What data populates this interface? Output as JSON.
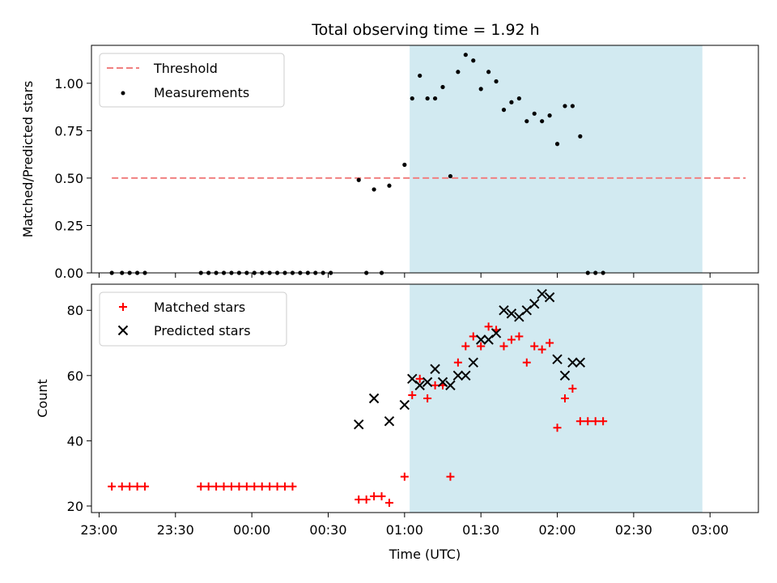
{
  "chart_data": [
    {
      "type": "scatter",
      "title": "Total observing time = 1.92 h",
      "xlabel": "",
      "ylabel": "Matched/Predicted stars",
      "ylim": [
        0,
        1.2
      ],
      "yticks": [
        0.0,
        0.25,
        0.5,
        0.75,
        1.0
      ],
      "ytick_labels": [
        "0.00",
        "0.25",
        "0.50",
        "0.75",
        "1.00"
      ],
      "shaded_region": {
        "start": "01:02",
        "end": "02:57",
        "color": "#add8e6"
      },
      "legend_position": "upper-left",
      "threshold": {
        "name": "Threshold",
        "value": 0.5,
        "x_range": [
          "23:05",
          "03:14"
        ],
        "color": "#f08080"
      },
      "series": [
        {
          "name": "Measurements",
          "marker": "dot",
          "color": "#000000",
          "points": [
            [
              "23:05",
              0.0
            ],
            [
              "23:09",
              0.0
            ],
            [
              "23:12",
              0.0
            ],
            [
              "23:15",
              0.0
            ],
            [
              "23:18",
              0.0
            ],
            [
              "23:40",
              0.0
            ],
            [
              "23:43",
              0.0
            ],
            [
              "23:46",
              0.0
            ],
            [
              "23:49",
              0.0
            ],
            [
              "23:52",
              0.0
            ],
            [
              "23:55",
              0.0
            ],
            [
              "23:58",
              0.0
            ],
            [
              "00:01",
              0.0
            ],
            [
              "00:04",
              0.0
            ],
            [
              "00:07",
              0.0
            ],
            [
              "00:10",
              0.0
            ],
            [
              "00:13",
              0.0
            ],
            [
              "00:16",
              0.0
            ],
            [
              "00:19",
              0.0
            ],
            [
              "00:22",
              0.0
            ],
            [
              "00:25",
              0.0
            ],
            [
              "00:28",
              0.0
            ],
            [
              "00:31",
              0.0
            ],
            [
              "00:42",
              0.49
            ],
            [
              "00:45",
              0.0
            ],
            [
              "00:48",
              0.44
            ],
            [
              "00:51",
              0.0
            ],
            [
              "00:54",
              0.46
            ],
            [
              "01:00",
              0.57
            ],
            [
              "01:03",
              0.92
            ],
            [
              "01:06",
              1.04
            ],
            [
              "01:09",
              0.92
            ],
            [
              "01:12",
              0.92
            ],
            [
              "01:15",
              0.98
            ],
            [
              "01:18",
              0.51
            ],
            [
              "01:21",
              1.06
            ],
            [
              "01:24",
              1.15
            ],
            [
              "01:27",
              1.12
            ],
            [
              "01:30",
              0.97
            ],
            [
              "01:33",
              1.06
            ],
            [
              "01:36",
              1.01
            ],
            [
              "01:39",
              0.86
            ],
            [
              "01:42",
              0.9
            ],
            [
              "01:45",
              0.92
            ],
            [
              "01:48",
              0.8
            ],
            [
              "01:51",
              0.84
            ],
            [
              "01:54",
              0.8
            ],
            [
              "01:57",
              0.83
            ],
            [
              "02:00",
              0.68
            ],
            [
              "02:03",
              0.88
            ],
            [
              "02:06",
              0.88
            ],
            [
              "02:09",
              0.72
            ],
            [
              "02:12",
              0.0
            ],
            [
              "02:15",
              0.0
            ],
            [
              "02:18",
              0.0
            ]
          ]
        }
      ]
    },
    {
      "type": "scatter",
      "title": "",
      "xlabel": "Time (UTC)",
      "ylabel": "Count",
      "ylim": [
        18,
        88
      ],
      "yticks": [
        20,
        40,
        60,
        80
      ],
      "ytick_labels": [
        "20",
        "40",
        "60",
        "80"
      ],
      "xlim": [
        "22:57",
        "03:19"
      ],
      "xticks": [
        "23:00",
        "23:30",
        "00:00",
        "00:30",
        "01:00",
        "01:30",
        "02:00",
        "02:30",
        "03:00"
      ],
      "shaded_region": {
        "start": "01:02",
        "end": "02:57",
        "color": "#add8e6"
      },
      "legend_position": "upper-left",
      "series": [
        {
          "name": "Matched stars",
          "marker": "plus",
          "color": "#ff0000",
          "points": [
            [
              "23:05",
              26
            ],
            [
              "23:09",
              26
            ],
            [
              "23:12",
              26
            ],
            [
              "23:15",
              26
            ],
            [
              "23:18",
              26
            ],
            [
              "23:40",
              26
            ],
            [
              "23:43",
              26
            ],
            [
              "23:46",
              26
            ],
            [
              "23:49",
              26
            ],
            [
              "23:52",
              26
            ],
            [
              "23:55",
              26
            ],
            [
              "23:58",
              26
            ],
            [
              "00:01",
              26
            ],
            [
              "00:04",
              26
            ],
            [
              "00:07",
              26
            ],
            [
              "00:10",
              26
            ],
            [
              "00:13",
              26
            ],
            [
              "00:16",
              26
            ],
            [
              "00:42",
              22
            ],
            [
              "00:45",
              22
            ],
            [
              "00:48",
              23
            ],
            [
              "00:51",
              23
            ],
            [
              "00:54",
              21
            ],
            [
              "01:00",
              29
            ],
            [
              "01:03",
              54
            ],
            [
              "01:06",
              59
            ],
            [
              "01:09",
              53
            ],
            [
              "01:12",
              57
            ],
            [
              "01:15",
              57
            ],
            [
              "01:18",
              29
            ],
            [
              "01:21",
              64
            ],
            [
              "01:24",
              69
            ],
            [
              "01:27",
              72
            ],
            [
              "01:30",
              69
            ],
            [
              "01:33",
              75
            ],
            [
              "01:36",
              74
            ],
            [
              "01:39",
              69
            ],
            [
              "01:42",
              71
            ],
            [
              "01:45",
              72
            ],
            [
              "01:48",
              64
            ],
            [
              "01:51",
              69
            ],
            [
              "01:54",
              68
            ],
            [
              "01:57",
              70
            ],
            [
              "02:00",
              44
            ],
            [
              "02:03",
              53
            ],
            [
              "02:06",
              56
            ],
            [
              "02:09",
              46
            ],
            [
              "02:12",
              46
            ],
            [
              "02:15",
              46
            ],
            [
              "02:18",
              46
            ]
          ]
        },
        {
          "name": "Predicted stars",
          "marker": "x",
          "color": "#000000",
          "points": [
            [
              "00:42",
              45
            ],
            [
              "00:48",
              53
            ],
            [
              "00:54",
              46
            ],
            [
              "01:00",
              51
            ],
            [
              "01:03",
              59
            ],
            [
              "01:06",
              57
            ],
            [
              "01:09",
              58
            ],
            [
              "01:12",
              62
            ],
            [
              "01:15",
              58
            ],
            [
              "01:18",
              57
            ],
            [
              "01:21",
              60
            ],
            [
              "01:24",
              60
            ],
            [
              "01:27",
              64
            ],
            [
              "01:30",
              71
            ],
            [
              "01:33",
              71
            ],
            [
              "01:36",
              73
            ],
            [
              "01:39",
              80
            ],
            [
              "01:42",
              79
            ],
            [
              "01:45",
              78
            ],
            [
              "01:48",
              80
            ],
            [
              "01:51",
              82
            ],
            [
              "01:54",
              85
            ],
            [
              "01:57",
              84
            ],
            [
              "02:00",
              65
            ],
            [
              "02:03",
              60
            ],
            [
              "02:06",
              64
            ],
            [
              "02:09",
              64
            ]
          ]
        }
      ]
    }
  ]
}
